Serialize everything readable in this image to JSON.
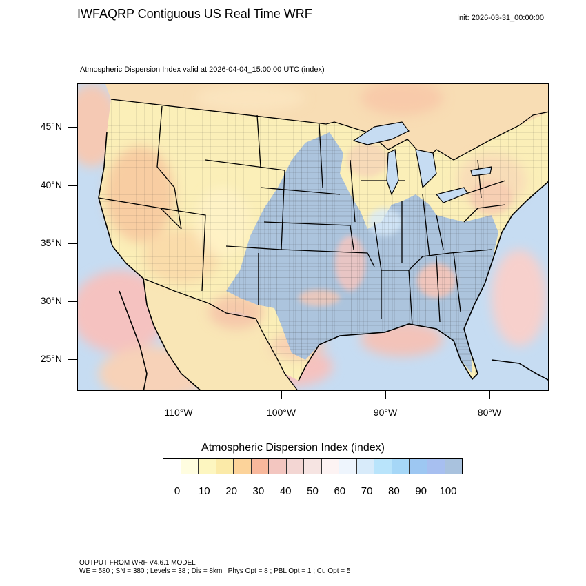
{
  "header": {
    "title": "IWFAQRP Contiguous US Real Time WRF",
    "init": "Init: 2026-03-31_00:00:00",
    "subtitle": "Atmospheric Dispersion Index valid at 2026-04-04_15:00:00 UTC   (index)"
  },
  "map": {
    "lat_labels": [
      "45°N",
      "40°N",
      "35°N",
      "30°N",
      "25°N"
    ],
    "lon_labels": [
      "110°W",
      "100°W",
      "90°W",
      "80°W"
    ],
    "colors": {
      "low_orange": "#f7c9a0",
      "mid_yellow": "#fbefb8",
      "high_blue": "#a9c2de",
      "ocean_blue": "#c6dcf2",
      "ocean_pink": "#f5c2c0",
      "border": "#000000"
    }
  },
  "colorbar": {
    "title": "Atmospheric Dispersion Index  (index)",
    "labels": [
      "0",
      "10",
      "20",
      "30",
      "40",
      "50",
      "60",
      "70",
      "80",
      "90",
      "100"
    ],
    "colors": [
      "#ffffff",
      "#fffde0",
      "#fdf6c0",
      "#fbeaa8",
      "#fcd39a",
      "#f8b89c",
      "#f3c6c0",
      "#f3d6d3",
      "#f6e4e2",
      "#fdf3f3",
      "#eef5fd",
      "#d8ebfa",
      "#b9e4fb",
      "#a6d7f7",
      "#9dc7f2",
      "#a7bff0",
      "#a9c2de"
    ]
  },
  "footer": {
    "line1": "OUTPUT FROM WRF V4.6.1 MODEL",
    "line2": "WE = 580 ; SN = 380 ; Levels = 38 ; Dis = 8km ; Phys Opt = 8 ; PBL Opt = 1 ; Cu Opt = 5"
  }
}
